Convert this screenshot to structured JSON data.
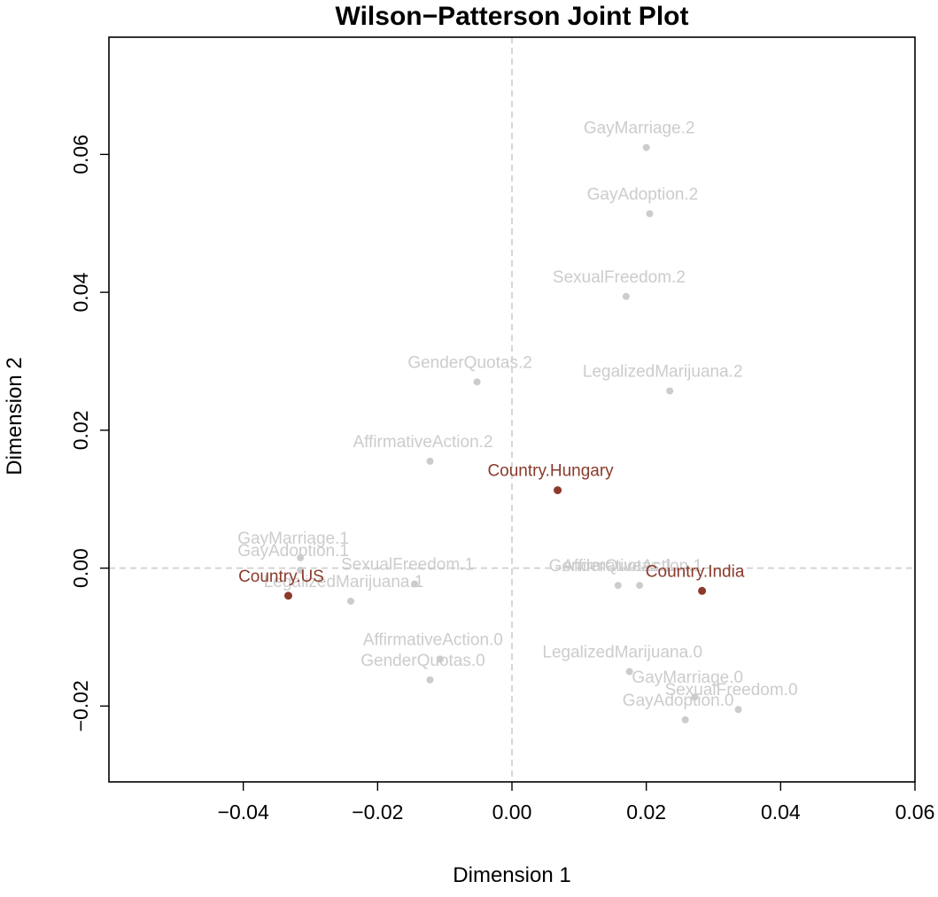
{
  "chart_data": {
    "type": "scatter",
    "title": "Wilson−Patterson Joint Plot",
    "xlabel": "Dimension 1",
    "ylabel": "Dimension 2",
    "xlim": [
      -0.06,
      0.06
    ],
    "ylim": [
      -0.031,
      0.077
    ],
    "x_ticks": [
      -0.04,
      -0.02,
      0.0,
      0.02,
      0.04,
      0.06
    ],
    "x_tick_labels": [
      "−0.04",
      "−0.02",
      "0.00",
      "0.02",
      "0.04",
      "0.06"
    ],
    "y_ticks": [
      -0.02,
      0.0,
      0.02,
      0.04,
      0.06
    ],
    "y_tick_labels": [
      "−0.02",
      "0.00",
      "0.02",
      "0.04",
      "0.06"
    ],
    "reference_lines": {
      "x": 0,
      "y": 0
    },
    "colors": {
      "items": "#cccccc",
      "countries": "#8b3a2b",
      "reference": "#cccccc",
      "frame": "#000000"
    },
    "points": [
      {
        "label": "GayMarriage.2",
        "x": 0.02,
        "y": 0.061,
        "group": "item"
      },
      {
        "label": "GayAdoption.2",
        "x": 0.0205,
        "y": 0.0514,
        "group": "item"
      },
      {
        "label": "SexualFreedom.2",
        "x": 0.017,
        "y": 0.0394,
        "group": "item"
      },
      {
        "label": "GenderQuotas.2",
        "x": -0.0052,
        "y": 0.027,
        "group": "item"
      },
      {
        "label": "LegalizedMarijuana.2",
        "x": 0.0235,
        "y": 0.0257,
        "group": "item"
      },
      {
        "label": "AffirmativeAction.2",
        "x": -0.0122,
        "y": 0.0155,
        "group": "item"
      },
      {
        "label": "GayMarriage.1",
        "x": -0.0315,
        "y": 0.0015,
        "group": "item"
      },
      {
        "label": "GayAdoption.1",
        "x": -0.0315,
        "y": -0.0003,
        "group": "item"
      },
      {
        "label": "SexualFreedom.1",
        "x": -0.0145,
        "y": -0.0023,
        "group": "item"
      },
      {
        "label": "LegalizedMarijuana.1",
        "x": -0.024,
        "y": -0.0048,
        "group": "item"
      },
      {
        "label": "GenderQuotas.1",
        "x": 0.0158,
        "y": -0.0025,
        "group": "item"
      },
      {
        "label": "AffirmativeAction.1",
        "x": 0.019,
        "y": -0.0025,
        "group": "item"
      },
      {
        "label": "AffirmativeAction.0",
        "x": -0.0107,
        "y": -0.0132,
        "group": "item"
      },
      {
        "label": "GenderQuotas.0",
        "x": -0.0122,
        "y": -0.0162,
        "group": "item"
      },
      {
        "label": "LegalizedMarijuana.0",
        "x": 0.0175,
        "y": -0.015,
        "group": "item"
      },
      {
        "label": "GayMarriage.0",
        "x": 0.0272,
        "y": -0.0187,
        "group": "item"
      },
      {
        "label": "SexualFreedom.0",
        "x": 0.0337,
        "y": -0.0205,
        "group": "item"
      },
      {
        "label": "GayAdoption.0",
        "x": 0.0258,
        "y": -0.022,
        "group": "item"
      },
      {
        "label": "Country.Hungary",
        "x": 0.0068,
        "y": 0.0113,
        "group": "country"
      },
      {
        "label": "Country.US",
        "x": -0.0333,
        "y": -0.004,
        "group": "country"
      },
      {
        "label": "Country.India",
        "x": 0.0283,
        "y": -0.0033,
        "group": "country"
      }
    ]
  }
}
